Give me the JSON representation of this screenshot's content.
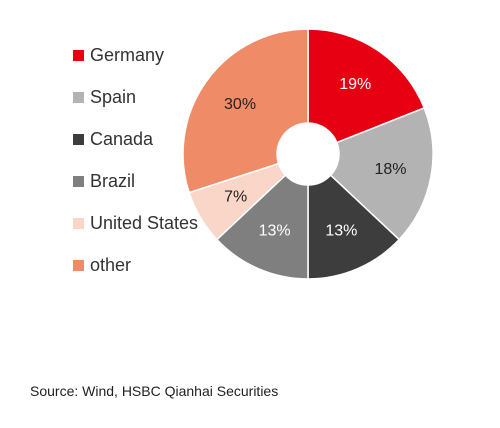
{
  "chart_data": {
    "type": "pie",
    "donut": true,
    "categories": [
      "Germany",
      "Spain",
      "Canada",
      "Brazil",
      "United States",
      "other"
    ],
    "values": [
      19,
      18,
      13,
      13,
      7,
      30
    ],
    "value_labels": [
      "19%",
      "18%",
      "13%",
      "13%",
      "7%",
      "30%"
    ],
    "colors": [
      "#e60012",
      "#b3b3b3",
      "#3d3d3d",
      "#7f7f7f",
      "#fad6c9",
      "#ef8b67"
    ],
    "label_colors": [
      "#ffffff",
      "#222222",
      "#ffffff",
      "#ffffff",
      "#222222",
      "#222222"
    ],
    "legend_position": "left",
    "start": "12 o'clock, clockwise"
  },
  "source": "Source: Wind, HSBC Qianhai Securities"
}
